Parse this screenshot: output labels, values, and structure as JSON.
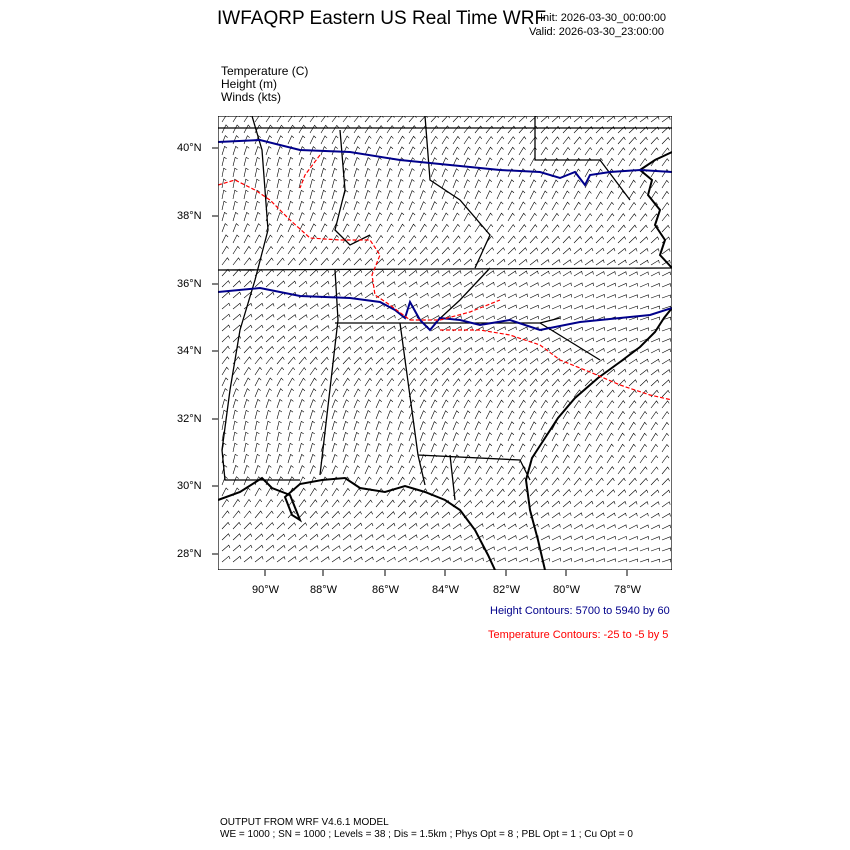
{
  "header": {
    "title": "IWFAQRP Eastern US Real Time WRF",
    "init": "Init: 2026-03-30_00:00:00",
    "valid": "Valid: 2026-03-30_23:00:00"
  },
  "fields": [
    "Temperature   (C)",
    "Height   (m)",
    "Winds   (kts)"
  ],
  "lat_labels": [
    "40°N",
    "38°N",
    "36°N",
    "34°N",
    "32°N",
    "30°N",
    "28°N"
  ],
  "lon_labels": [
    "90°W",
    "88°W",
    "86°W",
    "84°W",
    "82°W",
    "80°W",
    "78°W"
  ],
  "legend": {
    "height": "Height Contours: 5700 to 5940 by 60",
    "temperature": "Temperature Contours: -25 to -5 by 5"
  },
  "colors": {
    "height": "#00008b",
    "temperature": "#ff0000"
  },
  "footer": {
    "line1": "OUTPUT FROM WRF V4.6.1 MODEL",
    "line2": "WE = 1000 ; SN = 1000 ; Levels = 38 ; Dis = 1.5km ; Phys Opt = 8 ; PBL Opt = 1 ; Cu Opt = 0"
  }
}
